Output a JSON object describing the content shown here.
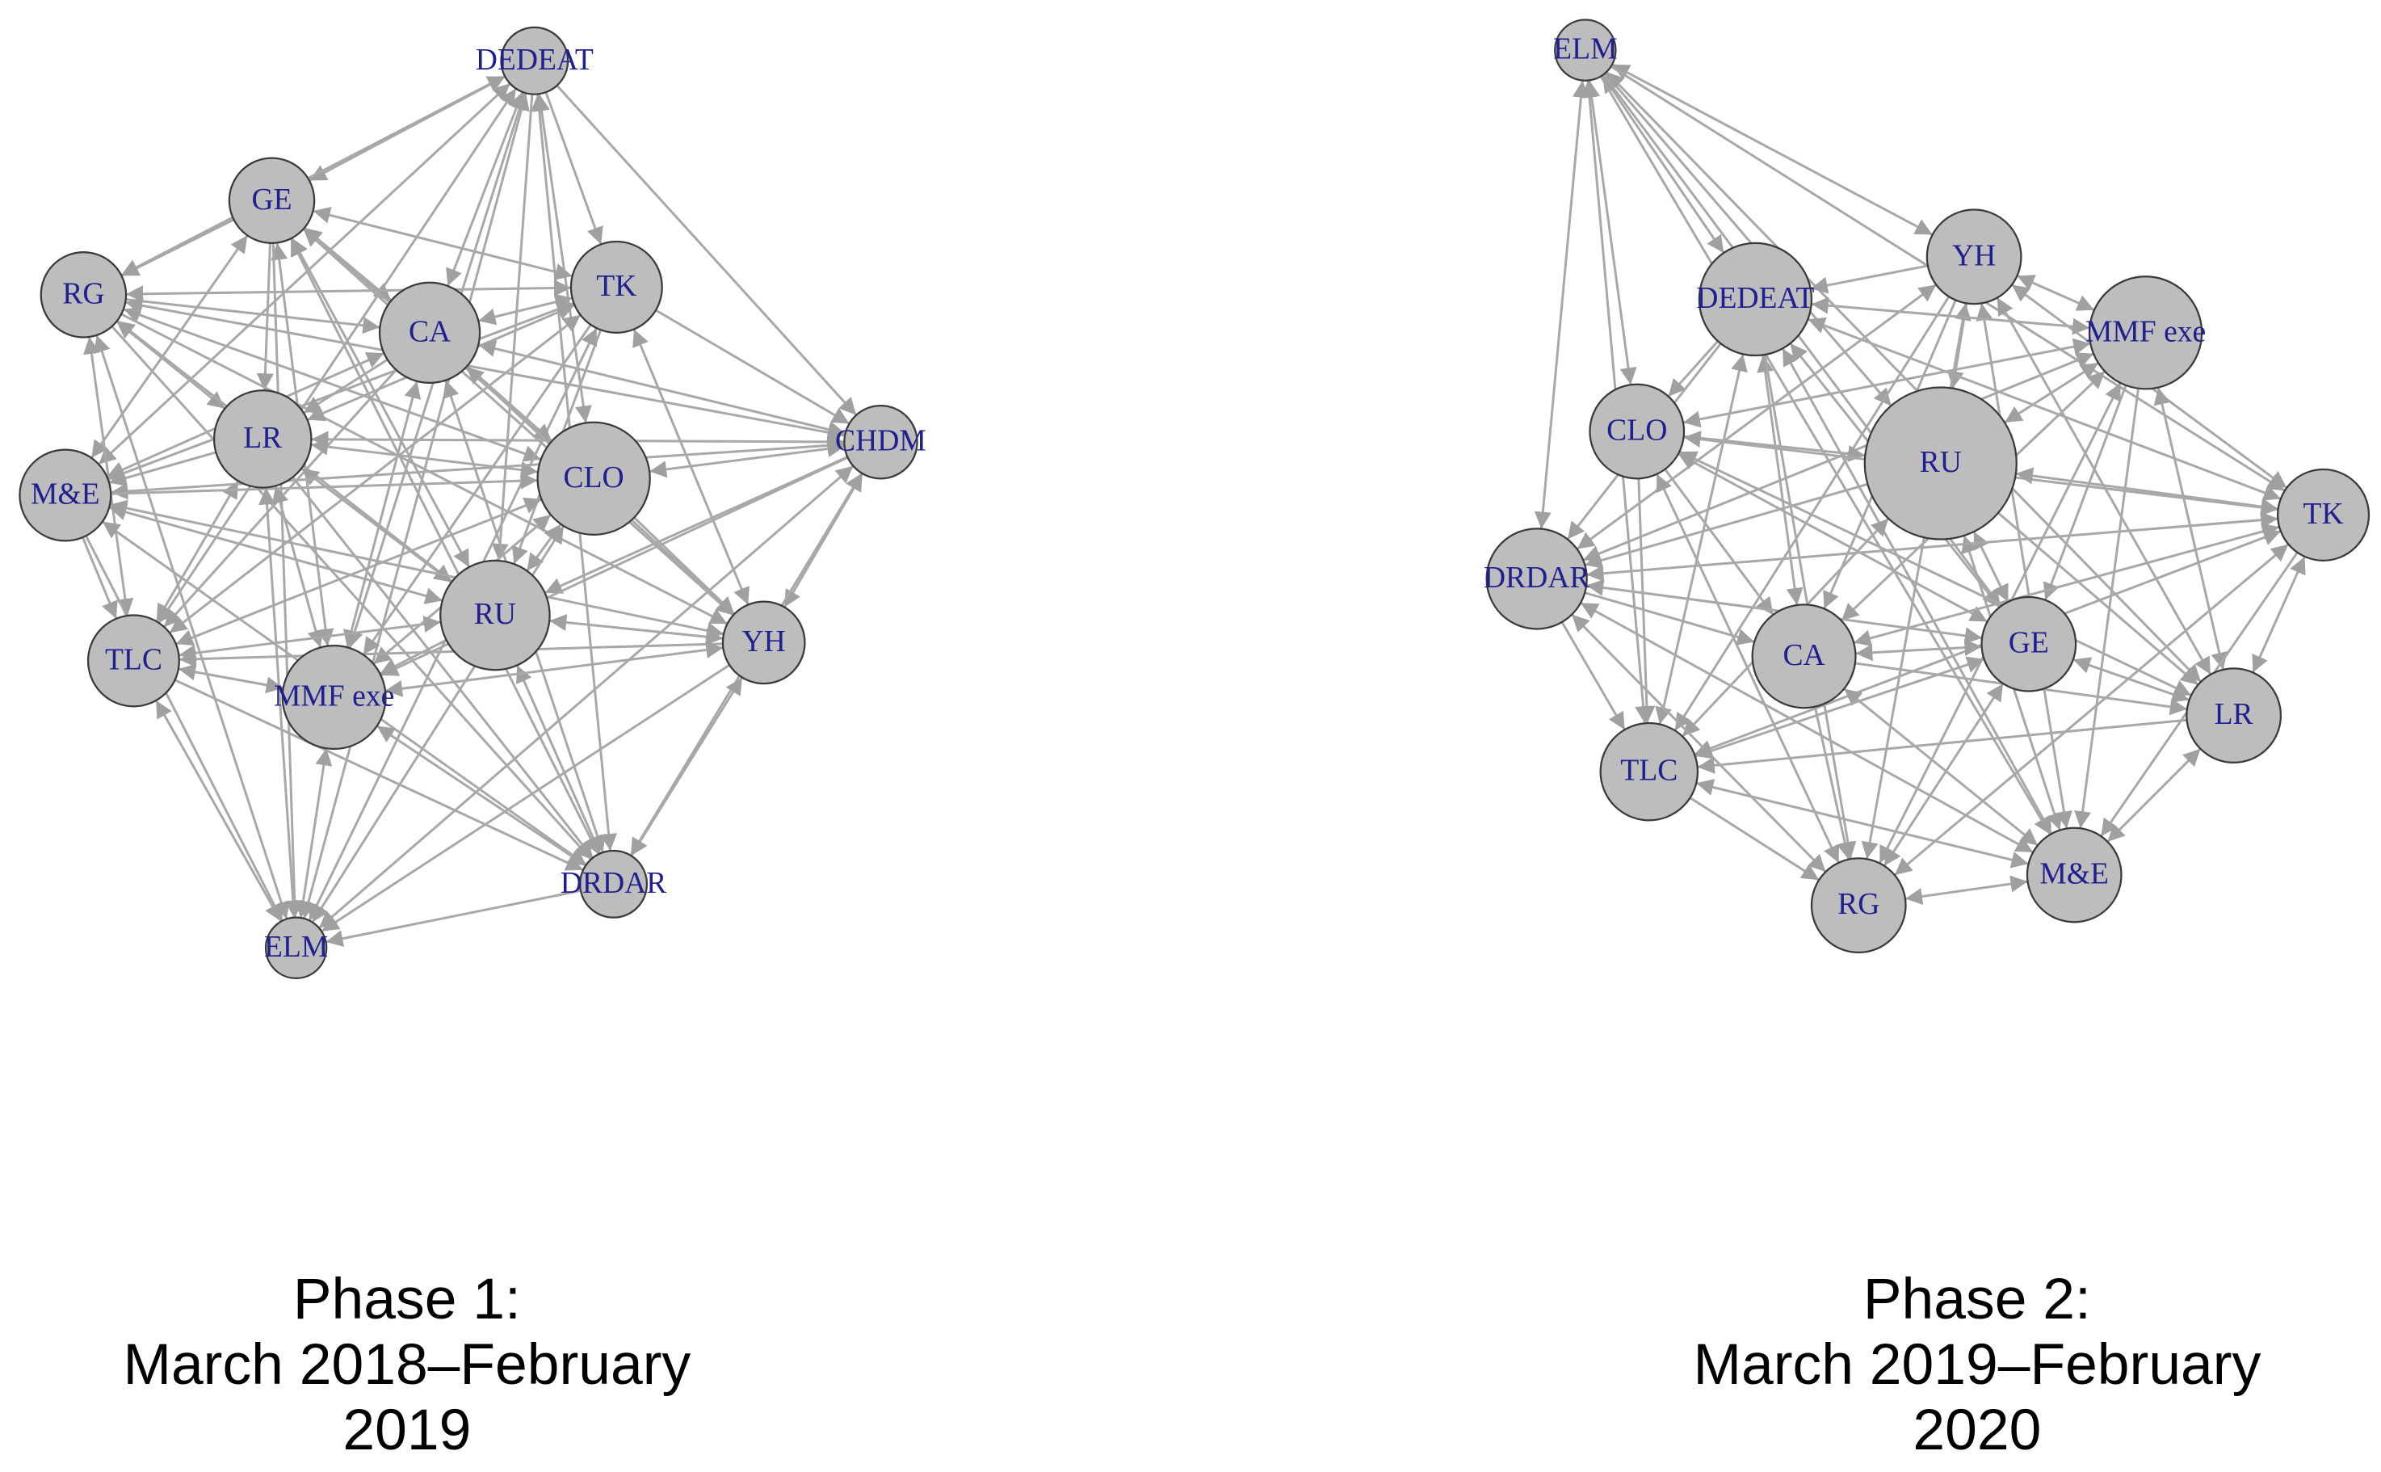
{
  "panels": [
    {
      "nodes": [
        {
          "label": "DEDEAT"
        },
        {
          "label": "GE"
        },
        {
          "label": "RG"
        },
        {
          "label": "TK"
        },
        {
          "label": "CA"
        },
        {
          "label": "LR"
        },
        {
          "label": "CHDM"
        },
        {
          "label": "M&E"
        },
        {
          "label": "CLO"
        },
        {
          "label": "RU"
        },
        {
          "label": "YH"
        },
        {
          "label": "TLC"
        },
        {
          "label": "MMF exe"
        },
        {
          "label": "DRDAR"
        },
        {
          "label": "ELM"
        }
      ],
      "caption": [
        "Phase 1:",
        "March 2018–February",
        "2019"
      ]
    },
    {
      "nodes": [
        {
          "label": "ELM"
        },
        {
          "label": "YH"
        },
        {
          "label": "DEDEAT"
        },
        {
          "label": "MMF exe"
        },
        {
          "label": "CLO"
        },
        {
          "label": "RU"
        },
        {
          "label": "TK"
        },
        {
          "label": "DRDAR"
        },
        {
          "label": "CA"
        },
        {
          "label": "GE"
        },
        {
          "label": "LR"
        },
        {
          "label": "TLC"
        },
        {
          "label": "M&E"
        },
        {
          "label": "RG"
        }
      ],
      "caption": [
        "Phase 2:",
        "March 2019–February",
        "2020"
      ]
    }
  ]
}
